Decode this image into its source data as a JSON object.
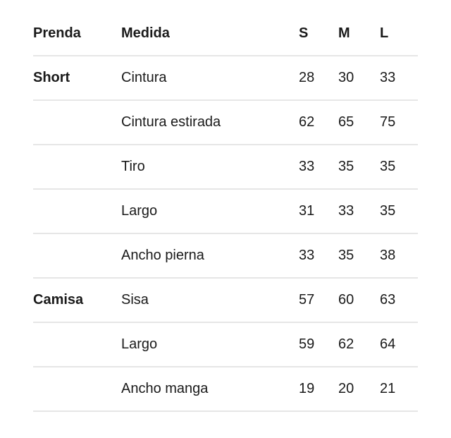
{
  "headers": [
    "Prenda",
    "Medida",
    "S",
    "M",
    "L"
  ],
  "rows": [
    {
      "prenda": "Short",
      "medida": "Cintura",
      "s": "28",
      "m": "30",
      "l": "33"
    },
    {
      "prenda": "",
      "medida": "Cintura estirada",
      "s": "62",
      "m": "65",
      "l": "75"
    },
    {
      "prenda": "",
      "medida": "Tiro",
      "s": "33",
      "m": "35",
      "l": "35"
    },
    {
      "prenda": "",
      "medida": "Largo",
      "s": "31",
      "m": "33",
      "l": "35"
    },
    {
      "prenda": "",
      "medida": "Ancho pierna",
      "s": "33",
      "m": "35",
      "l": "38"
    },
    {
      "prenda": "Camisa",
      "medida": "Sisa",
      "s": "57",
      "m": "60",
      "l": "63"
    },
    {
      "prenda": "",
      "medida": "Largo",
      "s": "59",
      "m": "62",
      "l": "64"
    },
    {
      "prenda": "",
      "medida": "Ancho manga",
      "s": "19",
      "m": "20",
      "l": "21"
    }
  ]
}
